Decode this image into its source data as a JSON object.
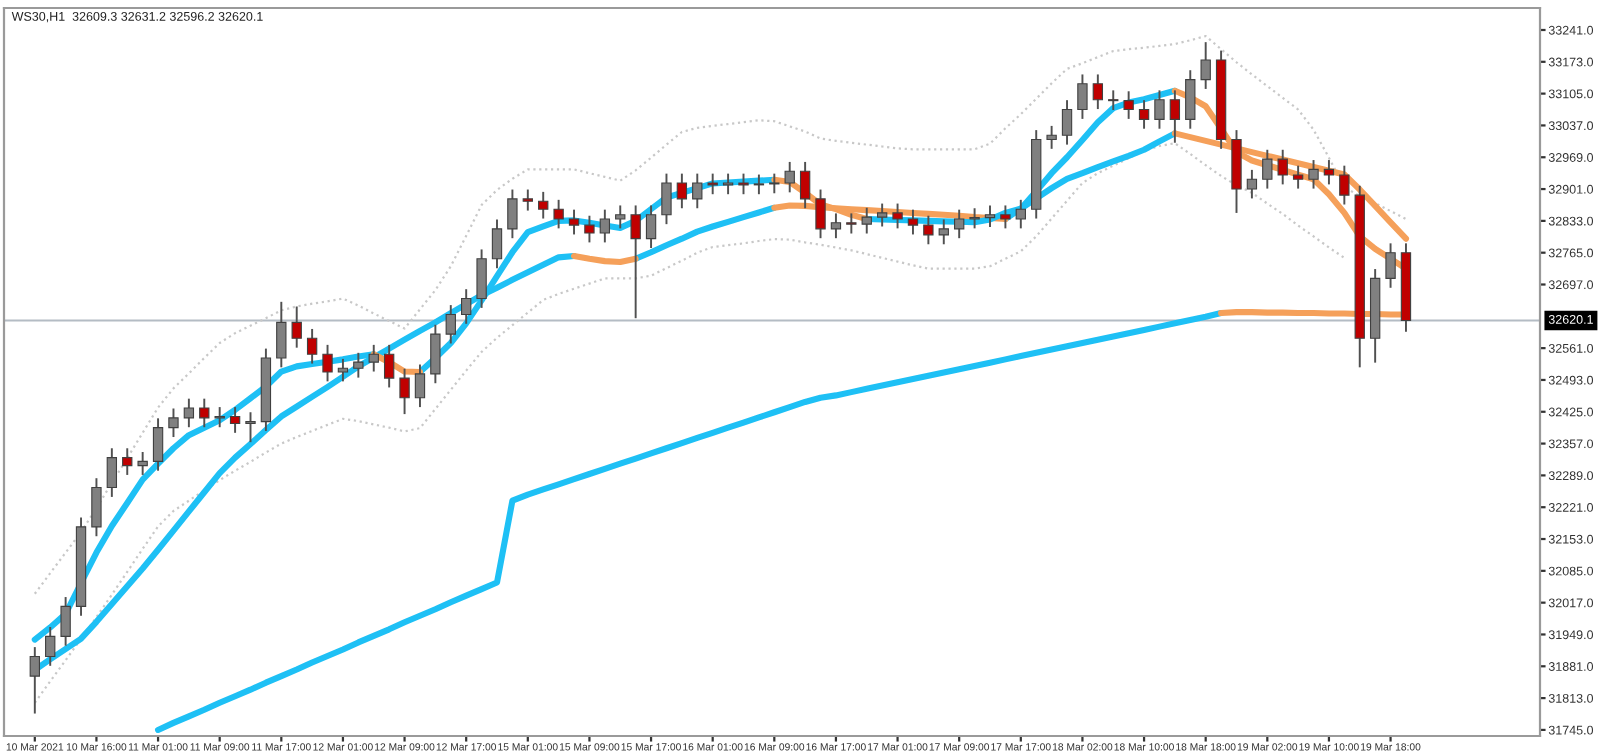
{
  "chart_data": {
    "type": "candlestick",
    "title": "WS30,H1  32609.3 32631.2 32596.2 32620.1",
    "categories": [
      "10 Mar 2021",
      null,
      null,
      null,
      "10 Mar 16:00",
      null,
      null,
      null,
      "11 Mar 01:00",
      null,
      null,
      null,
      "11 Mar 09:00",
      null,
      null,
      null,
      "11 Mar 17:00",
      null,
      null,
      null,
      "12 Mar 01:00",
      null,
      null,
      null,
      "12 Mar 09:00",
      null,
      null,
      null,
      "12 Mar 17:00",
      null,
      null,
      null,
      "15 Mar 01:00",
      null,
      null,
      null,
      "15 Mar 09:00",
      null,
      null,
      null,
      "15 Mar 17:00",
      null,
      null,
      null,
      "16 Mar 01:00",
      null,
      null,
      null,
      "16 Mar 09:00",
      null,
      null,
      null,
      "16 Mar 17:00",
      null,
      null,
      null,
      "17 Mar 01:00",
      null,
      null,
      null,
      "17 Mar 09:00",
      null,
      null,
      null,
      "17 Mar 17:00",
      null,
      null,
      null,
      "18 Mar 02:00",
      null,
      null,
      null,
      "18 Mar 10:00",
      null,
      null,
      null,
      "18 Mar 18:00",
      null,
      null,
      null,
      "19 Mar 02:00",
      null,
      null,
      null,
      "19 Mar 10:00",
      null,
      null,
      null,
      "19 Mar 18:00",
      null
    ],
    "ylim": [
      31732,
      33288
    ],
    "yticks": [
      {
        "value": 31745,
        "label": "31745.0"
      },
      {
        "value": 31813,
        "label": "31813.0"
      },
      {
        "value": 31881,
        "label": "31881.0"
      },
      {
        "value": 31949,
        "label": "31949.0"
      },
      {
        "value": 32017,
        "label": "32017.0"
      },
      {
        "value": 32085,
        "label": "32085.0"
      },
      {
        "value": 32153,
        "label": "32153.0"
      },
      {
        "value": 32221,
        "label": "32221.0"
      },
      {
        "value": 32289,
        "label": "32289.0"
      },
      {
        "value": 32357,
        "label": "32357.0"
      },
      {
        "value": 32425,
        "label": "32425.0"
      },
      {
        "value": 32493,
        "label": "32493.0"
      },
      {
        "value": 32561,
        "label": "32561.0"
      },
      {
        "value": 32697,
        "label": "32697.0"
      },
      {
        "value": 32765,
        "label": "32765.0"
      },
      {
        "value": 32833,
        "label": "32833.0"
      },
      {
        "value": 32901,
        "label": "32901.0"
      },
      {
        "value": 32969,
        "label": "32969.0"
      },
      {
        "value": 33037,
        "label": "33037.0"
      },
      {
        "value": 33105,
        "label": "33105.0"
      },
      {
        "value": 33173,
        "label": "33173.0"
      },
      {
        "value": 33241,
        "label": "33241.0"
      }
    ],
    "ref_lines": [
      {
        "axis": "y",
        "value": 32620.1,
        "label": "32620.1",
        "color": "#b4bcc4"
      }
    ],
    "series": [
      {
        "type": "line",
        "color": "#c8c8c8",
        "line_style": "dotted",
        "values": [
          32036,
          32080,
          32124,
          32168,
          32219,
          32273,
          32326,
          32380,
          32434,
          32475,
          32507,
          32540,
          32572,
          32593,
          32609,
          32625,
          32642,
          32650,
          32656,
          32661,
          32667,
          32652,
          32635,
          32619,
          32603,
          32644,
          32685,
          32736,
          32801,
          32867,
          32899,
          32923,
          32943,
          32943,
          32943,
          32943,
          32935,
          32927,
          32919,
          32941,
          32968,
          32996,
          33023,
          33032,
          33036,
          33040,
          33044,
          33048,
          33046,
          33035,
          33024,
          33009,
          33004,
          33000,
          32996,
          32992,
          32988,
          32986,
          32986,
          32986,
          32986,
          32986,
          32998,
          33031,
          33061,
          33094,
          33127,
          33158,
          33170,
          33183,
          33196,
          33200,
          33203,
          33207,
          33211,
          33219,
          33228,
          33200,
          33172,
          33146,
          33121,
          33096,
          33071,
          33028,
          32968,
          32905,
          32886,
          32871,
          32854,
          32837
        ]
      },
      {
        "type": "line",
        "color": "#c8c8c8",
        "line_style": "dotted",
        "values": [
          31803,
          31849,
          31894,
          31940,
          31986,
          32034,
          32083,
          32132,
          32180,
          32213,
          32235,
          32257,
          32279,
          32299,
          32318,
          32338,
          32357,
          32371,
          32384,
          32397,
          32410,
          32405,
          32398,
          32391,
          32383,
          32390,
          32431,
          32472,
          32513,
          32553,
          32583,
          32610,
          32637,
          32664,
          32677,
          32688,
          32699,
          32710,
          32710,
          32710,
          32716,
          32732,
          32748,
          32765,
          32777,
          32781,
          32785,
          32790,
          32794,
          32793,
          32787,
          32782,
          32776,
          32770,
          32762,
          32754,
          32746,
          32738,
          32731,
          32731,
          32731,
          32731,
          32736,
          32752,
          32768,
          32800,
          32838,
          32876,
          32914,
          32935,
          32951,
          32967,
          32983,
          32993,
          32999,
          32976,
          32952,
          32929,
          32909,
          32893,
          32870,
          32848,
          32823,
          32800,
          32776,
          32754,
          null,
          null,
          null,
          null
        ]
      },
      {
        "type": "line",
        "color": "#1ec0f5",
        "values": [
          null,
          null,
          null,
          null,
          null,
          null,
          null,
          null,
          31745,
          31760,
          31774,
          31788,
          31803,
          31817,
          31831,
          31846,
          31860,
          31874,
          31889,
          31903,
          31917,
          31932,
          31946,
          31960,
          31975,
          31989,
          32003,
          32018,
          32032,
          32046,
          32060,
          32235,
          32248,
          32259,
          32270,
          32281,
          32292,
          32303,
          32314,
          32325,
          32336,
          32347,
          32358,
          32369,
          32380,
          32391,
          32402,
          32413,
          32424,
          32435,
          32446,
          32455,
          32460,
          32467,
          32474,
          32481,
          32488,
          32495,
          32502,
          32509,
          32516,
          32523,
          32530,
          32537,
          32544,
          32551,
          32558,
          32565,
          32572,
          32579,
          32586,
          32593,
          32600,
          32607,
          32614,
          32621,
          32628,
          32636,
          null,
          null,
          null,
          null,
          null,
          null,
          null,
          null,
          null,
          null,
          null,
          null
        ]
      },
      {
        "type": "line",
        "color": "#f5a05a",
        "values": [
          null,
          null,
          null,
          null,
          null,
          null,
          null,
          null,
          null,
          null,
          null,
          null,
          null,
          null,
          null,
          null,
          null,
          null,
          null,
          null,
          null,
          null,
          null,
          null,
          null,
          null,
          null,
          null,
          null,
          null,
          null,
          null,
          null,
          null,
          null,
          null,
          null,
          null,
          null,
          null,
          null,
          null,
          null,
          null,
          null,
          null,
          null,
          null,
          null,
          null,
          null,
          null,
          null,
          null,
          null,
          null,
          null,
          null,
          null,
          null,
          null,
          null,
          null,
          null,
          null,
          null,
          null,
          null,
          null,
          null,
          null,
          null,
          null,
          null,
          null,
          null,
          null,
          32636,
          32638,
          32638,
          32637,
          32637,
          32636,
          32636,
          32635,
          32635,
          32634,
          32634,
          32633,
          32633
        ]
      },
      {
        "type": "line",
        "color": "#1ec0f5",
        "values": [
          31873,
          31896,
          31918,
          31940,
          31976,
          32014,
          32052,
          32090,
          32130,
          32171,
          32212,
          32253,
          32294,
          32327,
          32356,
          32386,
          32415,
          32436,
          32457,
          32478,
          32500,
          32522,
          32541,
          32560,
          32579,
          32598,
          32616,
          32636,
          32655,
          32674,
          32690,
          32707,
          32723,
          32739,
          32755,
          32758,
          null,
          null,
          null,
          32752,
          32766,
          32781,
          32795,
          32810,
          32821,
          32831,
          32841,
          32851,
          32861,
          null,
          null,
          null,
          null,
          null,
          null,
          null,
          null,
          null,
          null,
          null,
          null,
          null,
          null,
          32837,
          32859,
          32881,
          32903,
          32923,
          32935,
          32948,
          32960,
          32972,
          32985,
          33003,
          33020,
          null,
          null,
          null,
          null,
          null,
          null,
          null,
          null,
          null,
          null,
          null,
          null,
          null,
          null,
          null
        ]
      },
      {
        "type": "line",
        "color": "#f5a05a",
        "values": [
          null,
          null,
          null,
          null,
          null,
          null,
          null,
          null,
          null,
          null,
          null,
          null,
          null,
          null,
          null,
          null,
          null,
          null,
          null,
          null,
          null,
          null,
          null,
          null,
          null,
          null,
          null,
          null,
          null,
          null,
          null,
          null,
          null,
          null,
          null,
          32758,
          32752,
          32747,
          32745,
          32752,
          null,
          null,
          null,
          null,
          null,
          null,
          null,
          null,
          32861,
          32866,
          32865,
          32862,
          32860,
          32858,
          32856,
          32854,
          32852,
          32850,
          32848,
          32846,
          32844,
          32841,
          32839,
          32837,
          null,
          null,
          null,
          null,
          null,
          null,
          null,
          null,
          null,
          null,
          33020,
          33012,
          33004,
          32996,
          32988,
          32980,
          32972,
          32964,
          32956,
          32948,
          32940,
          32932,
          32900,
          32865,
          32830,
          32795
        ]
      },
      {
        "type": "line",
        "color": "#1ec0f5",
        "values": [
          31938,
          31964,
          31993,
          32059,
          32124,
          32181,
          32230,
          32280,
          32314,
          32347,
          32375,
          32391,
          32407,
          32429,
          32454,
          32479,
          32511,
          32522,
          32527,
          32532,
          32537,
          32543,
          32548,
          null,
          null,
          32510,
          32540,
          32572,
          32614,
          32663,
          32715,
          32766,
          32809,
          32821,
          32833,
          32834,
          32829,
          32823,
          32818,
          32833,
          32858,
          32883,
          32893,
          32903,
          32913,
          32915,
          32917,
          32919,
          32921,
          null,
          null,
          null,
          null,
          null,
          32837,
          32836,
          32835,
          32834,
          32833,
          32832,
          32831,
          32830,
          32836,
          32850,
          32859,
          32896,
          32935,
          32969,
          33006,
          33044,
          33074,
          33086,
          33093,
          33102,
          33111,
          null,
          null,
          null,
          null,
          null,
          null,
          null,
          null,
          null,
          null,
          null,
          null,
          null,
          null,
          null
        ]
      },
      {
        "type": "line",
        "color": "#f5a05a",
        "values": [
          null,
          null,
          null,
          null,
          null,
          null,
          null,
          null,
          null,
          null,
          null,
          null,
          null,
          null,
          null,
          null,
          null,
          null,
          null,
          null,
          null,
          null,
          32548,
          32531,
          32511,
          32510,
          null,
          null,
          null,
          null,
          null,
          null,
          null,
          null,
          null,
          null,
          null,
          null,
          null,
          null,
          null,
          null,
          null,
          null,
          null,
          null,
          null,
          null,
          32921,
          32916,
          32893,
          32868,
          32858,
          32846,
          32837,
          null,
          null,
          null,
          null,
          null,
          null,
          null,
          null,
          null,
          null,
          null,
          null,
          null,
          null,
          null,
          null,
          null,
          null,
          null,
          33111,
          33097,
          33078,
          33030,
          32980,
          32962,
          32952,
          32942,
          32932,
          32922,
          32890,
          32850,
          32800,
          32773,
          32752,
          32731
        ]
      },
      {
        "ohlc": [
          [
            31860,
            31922,
            31780,
            31902
          ],
          [
            31902,
            31965,
            31882,
            31945
          ],
          [
            31945,
            32029,
            31925,
            32009
          ],
          [
            32009,
            32199,
            31989,
            32179
          ],
          [
            32179,
            32283,
            32159,
            32263
          ],
          [
            32263,
            32347,
            32243,
            32327
          ],
          [
            32327,
            32347,
            32290,
            32310
          ],
          [
            32310,
            32339,
            32290,
            32319
          ],
          [
            32319,
            32411,
            32299,
            32391
          ],
          [
            32391,
            32432,
            32371,
            32412
          ],
          [
            32412,
            32453,
            32392,
            32433
          ],
          [
            32433,
            32453,
            32392,
            32412
          ],
          [
            32412,
            32435,
            32392,
            32415
          ],
          [
            32415,
            32435,
            32380,
            32400
          ],
          [
            32400,
            32424,
            32360,
            32404
          ],
          [
            32404,
            32560,
            32384,
            32540
          ],
          [
            32540,
            32660,
            32520,
            32616
          ],
          [
            32616,
            32650,
            32562,
            32582
          ],
          [
            32582,
            32602,
            32528,
            32548
          ],
          [
            32548,
            32568,
            32490,
            32510
          ],
          [
            32510,
            32538,
            32490,
            32518
          ],
          [
            32518,
            32551,
            32498,
            32531
          ],
          [
            32531,
            32568,
            32511,
            32548
          ],
          [
            32548,
            32568,
            32477,
            32497
          ],
          [
            32497,
            32517,
            32420,
            32455
          ],
          [
            32455,
            32526,
            32435,
            32506
          ],
          [
            32506,
            32611,
            32486,
            32591
          ],
          [
            32591,
            32653,
            32571,
            32633
          ],
          [
            32633,
            32687,
            32613,
            32667
          ],
          [
            32667,
            32772,
            32647,
            32752
          ],
          [
            32752,
            32836,
            32732,
            32816
          ],
          [
            32816,
            32900,
            32796,
            32880
          ],
          [
            32880,
            32900,
            32855,
            32875
          ],
          [
            32875,
            32895,
            32838,
            32858
          ],
          [
            32858,
            32878,
            32817,
            32837
          ],
          [
            32837,
            32857,
            32804,
            32824
          ],
          [
            32824,
            32844,
            32787,
            32807
          ],
          [
            32807,
            32857,
            32787,
            32837
          ],
          [
            32837,
            32866,
            32817,
            32846
          ],
          [
            32846,
            32866,
            32625,
            32795
          ],
          [
            32795,
            32866,
            32775,
            32846
          ],
          [
            32846,
            32934,
            32826,
            32914
          ],
          [
            32914,
            32934,
            32860,
            32880
          ],
          [
            32880,
            32934,
            32860,
            32914
          ],
          [
            32914,
            32934,
            32890,
            32910
          ],
          [
            32910,
            32934,
            32890,
            32914
          ],
          [
            32914,
            32934,
            32890,
            32910
          ],
          [
            32910,
            32932,
            32890,
            32912
          ],
          [
            32912,
            32934,
            32892,
            32914
          ],
          [
            32914,
            32959,
            32894,
            32939
          ],
          [
            32939,
            32959,
            32860,
            32880
          ],
          [
            32880,
            32900,
            32796,
            32816
          ],
          [
            32816,
            32849,
            32796,
            32829
          ],
          [
            32829,
            32849,
            32806,
            32826
          ],
          [
            32826,
            32861,
            32806,
            32841
          ],
          [
            32841,
            32870,
            32821,
            32850
          ],
          [
            32850,
            32870,
            32817,
            32837
          ],
          [
            32837,
            32857,
            32804,
            32824
          ],
          [
            32824,
            32844,
            32783,
            32803
          ],
          [
            32803,
            32836,
            32783,
            32816
          ],
          [
            32816,
            32857,
            32796,
            32837
          ],
          [
            32837,
            32860,
            32817,
            32840
          ],
          [
            32840,
            32866,
            32820,
            32846
          ],
          [
            32846,
            32866,
            32817,
            32837
          ],
          [
            32837,
            32878,
            32817,
            32858
          ],
          [
            32858,
            33027,
            32838,
            33007
          ],
          [
            33007,
            33036,
            32987,
            33016
          ],
          [
            33016,
            33091,
            32996,
            33071
          ],
          [
            33071,
            33146,
            33051,
            33126
          ],
          [
            33126,
            33146,
            33072,
            33092
          ],
          [
            33092,
            33112,
            33070,
            33090
          ],
          [
            33090,
            33110,
            33051,
            33071
          ],
          [
            33071,
            33091,
            33030,
            33050
          ],
          [
            33050,
            33112,
            33030,
            33092
          ],
          [
            33092,
            33112,
            33000,
            33050
          ],
          [
            33050,
            33155,
            33030,
            33135
          ],
          [
            33135,
            33215,
            33115,
            33177
          ],
          [
            33177,
            33197,
            32987,
            33007
          ],
          [
            33007,
            33027,
            32850,
            32901
          ],
          [
            32901,
            32942,
            32881,
            32922
          ],
          [
            32922,
            32985,
            32902,
            32965
          ],
          [
            32965,
            32985,
            32911,
            32931
          ],
          [
            32931,
            32951,
            32902,
            32922
          ],
          [
            32922,
            32963,
            32902,
            32943
          ],
          [
            32943,
            32963,
            32911,
            32931
          ],
          [
            32931,
            32951,
            32868,
            32888
          ],
          [
            32888,
            32908,
            32520,
            32582
          ],
          [
            32582,
            32730,
            32530,
            32710
          ],
          [
            32710,
            32785,
            32690,
            32765
          ],
          [
            32765,
            32785,
            32596,
            32620
          ]
        ],
        "colors": [
          "#808080",
          "#808080",
          "#808080",
          "#808080",
          "#808080",
          "#808080",
          "#c00000",
          "#808080",
          "#808080",
          "#808080",
          "#808080",
          "#c00000",
          "#808080",
          "#c00000",
          "#808080",
          "#808080",
          "#808080",
          "#c00000",
          "#c00000",
          "#c00000",
          "#808080",
          "#808080",
          "#808080",
          "#c00000",
          "#c00000",
          "#808080",
          "#808080",
          "#808080",
          "#808080",
          "#808080",
          "#808080",
          "#808080",
          "#c00000",
          "#c00000",
          "#c00000",
          "#c00000",
          "#c00000",
          "#808080",
          "#808080",
          "#c00000",
          "#808080",
          "#808080",
          "#c00000",
          "#808080",
          "#c00000",
          "#808080",
          "#c00000",
          "#808080",
          "#808080",
          "#808080",
          "#c00000",
          "#c00000",
          "#808080",
          "#c00000",
          "#808080",
          "#808080",
          "#c00000",
          "#c00000",
          "#c00000",
          "#808080",
          "#808080",
          "#808080",
          "#808080",
          "#c00000",
          "#808080",
          "#808080",
          "#808080",
          "#808080",
          "#808080",
          "#c00000",
          "#c00000",
          "#c00000",
          "#c00000",
          "#808080",
          "#c00000",
          "#808080",
          "#808080",
          "#c00000",
          "#c00000",
          "#808080",
          "#808080",
          "#c00000",
          "#c00000",
          "#808080",
          "#c00000",
          "#c00000",
          "#c00000",
          "#808080",
          "#808080",
          "#c00000"
        ]
      }
    ]
  }
}
